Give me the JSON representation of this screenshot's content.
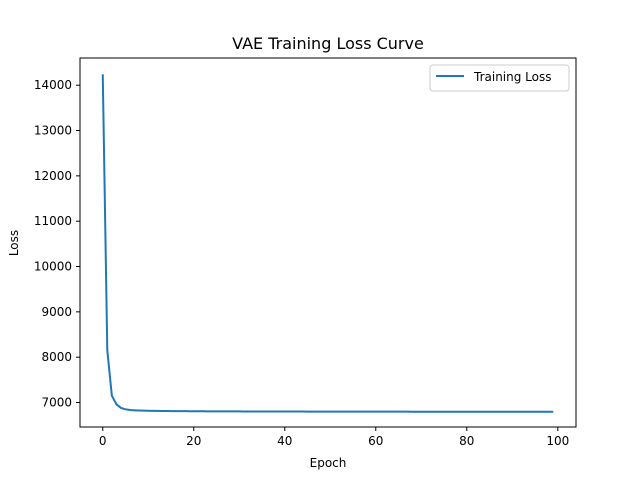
{
  "chart_data": {
    "type": "line",
    "title": "VAE Training Loss Curve",
    "xlabel": "Epoch",
    "ylabel": "Loss",
    "xlim": [
      -5,
      104
    ],
    "ylim": [
      6460,
      14600
    ],
    "xticks": [
      0,
      20,
      40,
      60,
      80,
      100
    ],
    "yticks": [
      7000,
      8000,
      9000,
      10000,
      11000,
      12000,
      13000,
      14000
    ],
    "grid": false,
    "legend_position": "top-right",
    "series": [
      {
        "name": "Training Loss",
        "color": "#1f77b4",
        "x": [
          0,
          1,
          2,
          3,
          4,
          5,
          6,
          7,
          8,
          9,
          10,
          11,
          12,
          13,
          14,
          15,
          16,
          17,
          18,
          19,
          20,
          21,
          22,
          23,
          24,
          25,
          26,
          27,
          28,
          29,
          30,
          31,
          32,
          33,
          34,
          35,
          36,
          37,
          38,
          39,
          40,
          41,
          42,
          43,
          44,
          45,
          46,
          47,
          48,
          49,
          50,
          51,
          52,
          53,
          54,
          55,
          56,
          57,
          58,
          59,
          60,
          61,
          62,
          63,
          64,
          65,
          66,
          67,
          68,
          69,
          70,
          71,
          72,
          73,
          74,
          75,
          76,
          77,
          78,
          79,
          80,
          81,
          82,
          83,
          84,
          85,
          86,
          87,
          88,
          89,
          90,
          91,
          92,
          93,
          94,
          95,
          96,
          97,
          98,
          99
        ],
        "y": [
          14240,
          8150,
          7150,
          6960,
          6880,
          6850,
          6835,
          6828,
          6823,
          6820,
          6818,
          6817,
          6816,
          6813,
          6812,
          6811,
          6810,
          6810,
          6809,
          6808,
          6808,
          6807,
          6807,
          6806,
          6806,
          6805,
          6805,
          6805,
          6804,
          6804,
          6804,
          6803,
          6803,
          6803,
          6803,
          6802,
          6802,
          6802,
          6802,
          6802,
          6801,
          6801,
          6801,
          6801,
          6801,
          6800,
          6800,
          6800,
          6800,
          6800,
          6800,
          6799,
          6799,
          6799,
          6799,
          6799,
          6799,
          6799,
          6799,
          6798,
          6798,
          6798,
          6798,
          6798,
          6798,
          6798,
          6798,
          6798,
          6797,
          6797,
          6797,
          6797,
          6797,
          6797,
          6797,
          6797,
          6797,
          6797,
          6796,
          6796,
          6796,
          6796,
          6796,
          6796,
          6796,
          6796,
          6796,
          6796,
          6796,
          6796,
          6795,
          6795,
          6795,
          6795,
          6795,
          6795,
          6795,
          6795,
          6795,
          6795
        ]
      }
    ]
  }
}
